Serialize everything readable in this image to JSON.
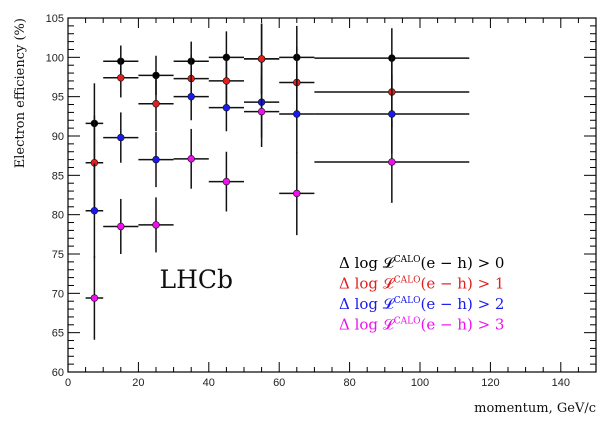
{
  "chart_data": {
    "type": "scatter",
    "title": "",
    "xlabel": "momentum, GeV/c",
    "ylabel": "Electron efficiency (%)",
    "xlim": [
      0,
      150
    ],
    "ylim": [
      60,
      105
    ],
    "x_ticks": [
      0,
      20,
      40,
      60,
      80,
      100,
      120,
      140
    ],
    "y_ticks": [
      60,
      65,
      70,
      75,
      80,
      85,
      90,
      95,
      100,
      105
    ],
    "grid": false,
    "watermark": "LHCb",
    "legend_position": "bottom-right",
    "series": [
      {
        "name": "Δ log 𝓛^CALO(e − h) > 0",
        "legend_parts": {
          "prefix": "Δ log 𝓛",
          "sup": "CALO",
          "suffix": "(e − h) > 0"
        },
        "color": "#000000",
        "points": [
          {
            "x": 7.5,
            "y": 91.6,
            "xerr": 2.5,
            "yerr": 5.1
          },
          {
            "x": 15,
            "y": 99.5,
            "xerr": 5,
            "yerr": 2.0
          },
          {
            "x": 25,
            "y": 97.7,
            "xerr": 5,
            "yerr": 2.5
          },
          {
            "x": 35,
            "y": 99.5,
            "xerr": 5,
            "yerr": 2.5
          },
          {
            "x": 45,
            "y": 100.0,
            "xerr": 5,
            "yerr": 3.3
          },
          {
            "x": 55,
            "y": 99.8,
            "xerr": 5,
            "yerr": 4.5
          },
          {
            "x": 65,
            "y": 100.0,
            "xerr": 5,
            "yerr": 4.0
          },
          {
            "x": 92,
            "y": 99.9,
            "xerr": 22,
            "yerr": 3.8
          }
        ]
      },
      {
        "name": "Δ log 𝓛^CALO(e − h) > 1",
        "legend_parts": {
          "prefix": "Δ log 𝓛",
          "sup": "CALO",
          "suffix": "(e − h) > 1"
        },
        "color": "#e02020",
        "points": [
          {
            "x": 7.5,
            "y": 86.6,
            "xerr": 2.5,
            "yerr": 6.0
          },
          {
            "x": 15,
            "y": 97.4,
            "xerr": 5,
            "yerr": 2.5
          },
          {
            "x": 25,
            "y": 94.1,
            "xerr": 5,
            "yerr": 3.5
          },
          {
            "x": 35,
            "y": 97.3,
            "xerr": 5,
            "yerr": 3.0
          },
          {
            "x": 45,
            "y": 97.0,
            "xerr": 5,
            "yerr": 3.0
          },
          {
            "x": 55,
            "y": 99.8,
            "xerr": 5,
            "yerr": 4.5
          },
          {
            "x": 65,
            "y": 96.8,
            "xerr": 5,
            "yerr": 4.5
          },
          {
            "x": 92,
            "y": 95.6,
            "xerr": 22,
            "yerr": 4.5
          }
        ]
      },
      {
        "name": "Δ log 𝓛^CALO(e − h) > 2",
        "legend_parts": {
          "prefix": "Δ log 𝓛",
          "sup": "CALO",
          "suffix": "(e − h) > 2"
        },
        "color": "#1a1aee",
        "points": [
          {
            "x": 7.5,
            "y": 80.5,
            "xerr": 2.5,
            "yerr": 6.0
          },
          {
            "x": 15,
            "y": 89.8,
            "xerr": 5,
            "yerr": 3.2
          },
          {
            "x": 25,
            "y": 87.0,
            "xerr": 5,
            "yerr": 3.5
          },
          {
            "x": 35,
            "y": 95.0,
            "xerr": 5,
            "yerr": 3.0
          },
          {
            "x": 45,
            "y": 93.6,
            "xerr": 5,
            "yerr": 3.0
          },
          {
            "x": 55,
            "y": 94.3,
            "xerr": 5,
            "yerr": 4.5
          },
          {
            "x": 65,
            "y": 92.8,
            "xerr": 5,
            "yerr": 5.0
          },
          {
            "x": 92,
            "y": 92.8,
            "xerr": 22,
            "yerr": 5.0
          }
        ]
      },
      {
        "name": "Δ log 𝓛^CALO(e − h) > 3",
        "legend_parts": {
          "prefix": "Δ log 𝓛",
          "sup": "CALO",
          "suffix": "(e − h) > 3"
        },
        "color": "#ee10ee",
        "points": [
          {
            "x": 7.5,
            "y": 69.4,
            "xerr": 2.5,
            "yerr": 5.3
          },
          {
            "x": 15,
            "y": 78.5,
            "xerr": 5,
            "yerr": 3.5
          },
          {
            "x": 25,
            "y": 78.7,
            "xerr": 5,
            "yerr": 3.5
          },
          {
            "x": 35,
            "y": 87.1,
            "xerr": 5,
            "yerr": 3.8
          },
          {
            "x": 45,
            "y": 84.2,
            "xerr": 5,
            "yerr": 3.8
          },
          {
            "x": 55,
            "y": 93.1,
            "xerr": 5,
            "yerr": 4.5
          },
          {
            "x": 65,
            "y": 82.7,
            "xerr": 5,
            "yerr": 5.3
          },
          {
            "x": 92,
            "y": 86.7,
            "xerr": 22,
            "yerr": 5.2
          }
        ]
      }
    ]
  }
}
